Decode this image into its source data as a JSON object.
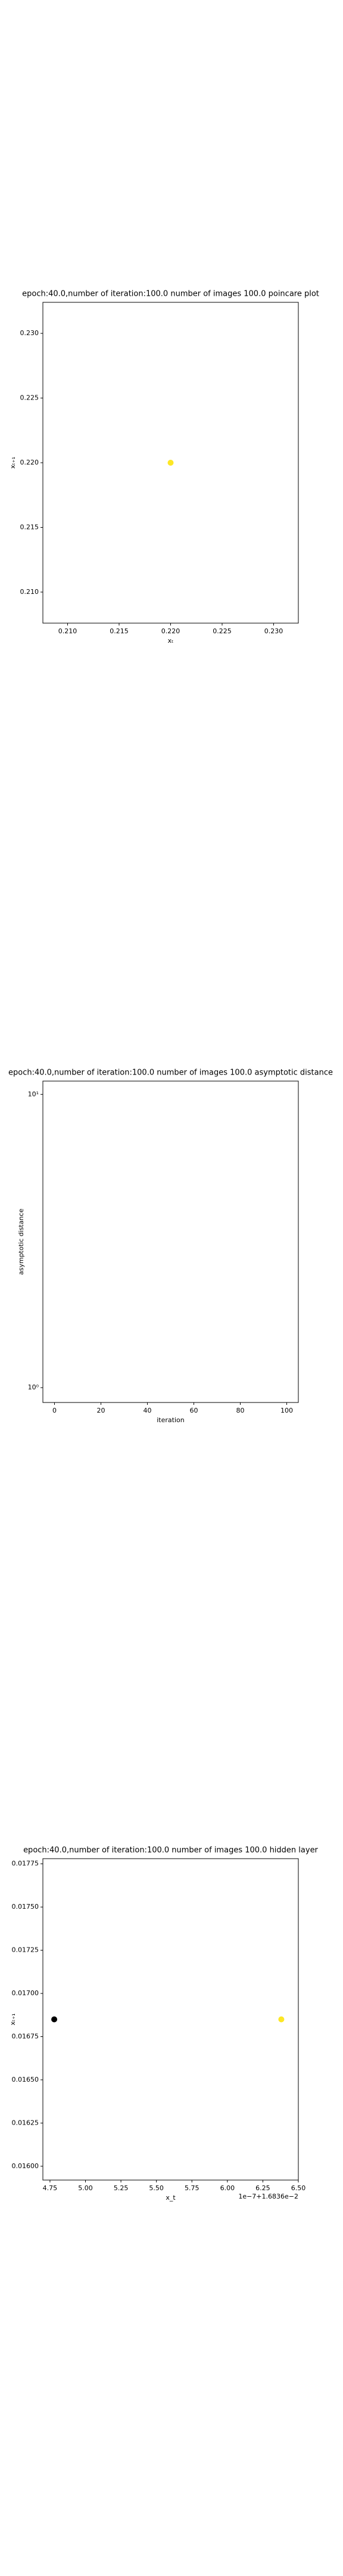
{
  "chart_data": [
    {
      "type": "scatter",
      "title": "epoch:40.0,number of iteration:100.0 number of images 100.0 poincare plot",
      "x_label": "xₜ",
      "y_label": "xₜ₊₁",
      "x": [
        0.22
      ],
      "values": [
        0.22
      ],
      "colors": [
        "#fde725"
      ],
      "xlim": [
        0.2076,
        0.2324
      ],
      "ylim": [
        0.2076,
        0.2324
      ],
      "xticks": [
        {
          "value": 0.21,
          "label": "0.210"
        },
        {
          "value": 0.215,
          "label": "0.215"
        },
        {
          "value": 0.22,
          "label": "0.220"
        },
        {
          "value": 0.225,
          "label": "0.225"
        },
        {
          "value": 0.23,
          "label": "0.230"
        }
      ],
      "yticks": [
        {
          "value": 0.21,
          "label": "0.210"
        },
        {
          "value": 0.215,
          "label": "0.215"
        },
        {
          "value": 0.22,
          "label": "0.220"
        },
        {
          "value": 0.225,
          "label": "0.225"
        },
        {
          "value": 0.23,
          "label": "0.230"
        }
      ]
    },
    {
      "type": "line",
      "title": "epoch:40.0,number of iteration:100.0  number of images 100.0 asymptotic distance",
      "x_label": "iteration",
      "y_label": "asymptotic distance",
      "ylog": true,
      "xlim": [
        -5,
        105
      ],
      "ylim": [
        0.89,
        11.1
      ],
      "xticks": [
        0,
        20,
        40,
        60,
        80,
        100
      ],
      "yticks": [
        {
          "value": 1,
          "label": "10⁰"
        },
        {
          "value": 10,
          "label": "10¹"
        }
      ]
    },
    {
      "type": "scatter",
      "title": "epoch:40.0,number of iteration:100.0  number of images 100.0 hidden layer",
      "x_label": "x_t",
      "y_label": "xₜ₊₁",
      "x_offset_label": "1e−7+1.6836e−2",
      "x": [
        4.78,
        6.38
      ],
      "values": [
        0.01685,
        0.01685
      ],
      "colors": [
        "#000000",
        "#fde725"
      ],
      "xlim": [
        4.7,
        6.5
      ],
      "ylim": [
        0.01592,
        0.01778
      ],
      "xticks": [
        {
          "value": 4.75,
          "label": "4.75"
        },
        {
          "value": 5.0,
          "label": "5.00"
        },
        {
          "value": 5.25,
          "label": "5.25"
        },
        {
          "value": 5.5,
          "label": "5.50"
        },
        {
          "value": 5.75,
          "label": "5.75"
        },
        {
          "value": 6.0,
          "label": "6.00"
        },
        {
          "value": 6.25,
          "label": "6.25"
        },
        {
          "value": 6.5,
          "label": "6.50"
        }
      ],
      "yticks": [
        {
          "value": 0.016,
          "label": "0.01600"
        },
        {
          "value": 0.01625,
          "label": "0.01625"
        },
        {
          "value": 0.0165,
          "label": "0.01650"
        },
        {
          "value": 0.01675,
          "label": "0.01675"
        },
        {
          "value": 0.017,
          "label": "0.01700"
        },
        {
          "value": 0.01725,
          "label": "0.01725"
        },
        {
          "value": 0.0175,
          "label": "0.01750"
        },
        {
          "value": 0.01775,
          "label": "0.01775"
        }
      ]
    }
  ]
}
